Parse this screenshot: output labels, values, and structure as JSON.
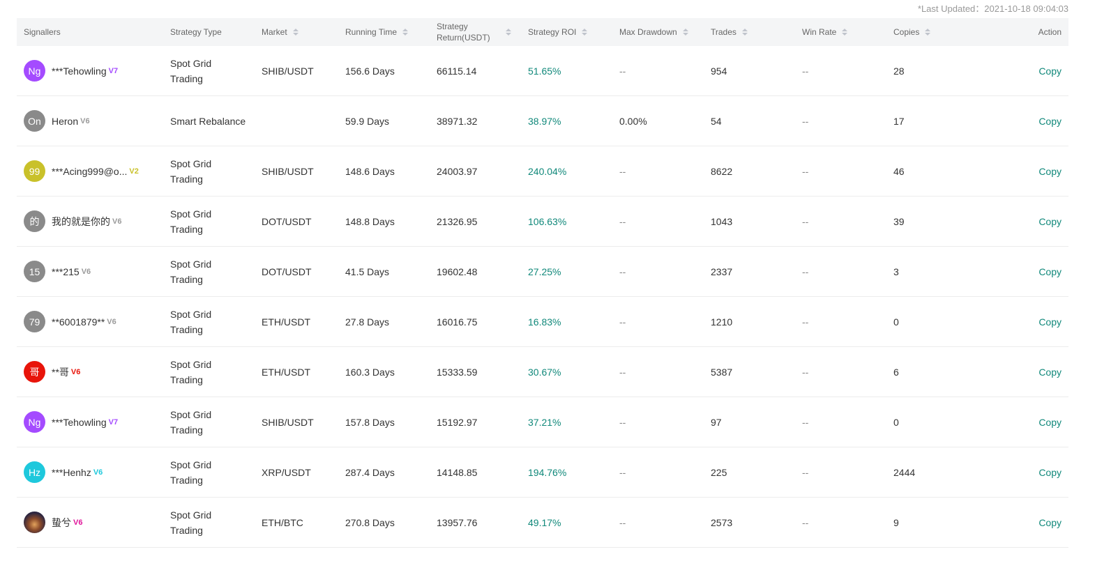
{
  "last_updated": "*Last Updated：2021-10-18 09:04:03",
  "headers": {
    "signallers": "Signallers",
    "strategy_type": "Strategy Type",
    "market": "Market",
    "running_time": "Running Time",
    "strategy_return_line1": "Strategy",
    "strategy_return_line2": "Return(USDT)",
    "strategy_roi": "Strategy ROI",
    "max_drawdown": "Max Drawdown",
    "trades": "Trades",
    "win_rate": "Win Rate",
    "copies": "Copies",
    "action": "Action"
  },
  "colors": {
    "accent": "#10887a",
    "header_bg": "#f4f5f6"
  },
  "rows": [
    {
      "avatar": "Ng",
      "avatar_color": "#a44bff",
      "name": "***Tehowling",
      "badge": "V7",
      "badge_color": "#a44bff",
      "type_line1": "Spot Grid",
      "type_line2": "Trading",
      "market": "SHIB/USDT",
      "running_time": "156.6 Days",
      "strategy_return": "66115.14",
      "roi": "51.65%",
      "max_drawdown": "--",
      "trades": "954",
      "win_rate": "--",
      "copies": "28",
      "action": "Copy"
    },
    {
      "avatar": "On",
      "avatar_color": "#8a8a8a",
      "name": "Heron",
      "badge": "V6",
      "badge_color": "#9a9a9a",
      "type_line1": "Smart Rebalance",
      "type_line2": "",
      "market": "",
      "running_time": "59.9 Days",
      "strategy_return": "38971.32",
      "roi": "38.97%",
      "max_drawdown": "0.00%",
      "trades": "54",
      "win_rate": "--",
      "copies": "17",
      "action": "Copy"
    },
    {
      "avatar": "99",
      "avatar_color": "#c9c12a",
      "name": "***Acing999@o...",
      "badge": "V2",
      "badge_color": "#c9c12a",
      "type_line1": "Spot Grid",
      "type_line2": "Trading",
      "market": "SHIB/USDT",
      "running_time": "148.6 Days",
      "strategy_return": "24003.97",
      "roi": "240.04%",
      "max_drawdown": "--",
      "trades": "8622",
      "win_rate": "--",
      "copies": "46",
      "action": "Copy"
    },
    {
      "avatar": "的",
      "avatar_color": "#8a8a8a",
      "name": "我的就是你的",
      "badge": "V6",
      "badge_color": "#9a9a9a",
      "type_line1": "Spot Grid",
      "type_line2": "Trading",
      "market": "DOT/USDT",
      "running_time": "148.8 Days",
      "strategy_return": "21326.95",
      "roi": "106.63%",
      "max_drawdown": "--",
      "trades": "1043",
      "win_rate": "--",
      "copies": "39",
      "action": "Copy"
    },
    {
      "avatar": "15",
      "avatar_color": "#8a8a8a",
      "name": "***215",
      "badge": "V6",
      "badge_color": "#9a9a9a",
      "type_line1": "Spot Grid",
      "type_line2": "Trading",
      "market": "DOT/USDT",
      "running_time": "41.5 Days",
      "strategy_return": "19602.48",
      "roi": "27.25%",
      "max_drawdown": "--",
      "trades": "2337",
      "win_rate": "--",
      "copies": "3",
      "action": "Copy"
    },
    {
      "avatar": "79",
      "avatar_color": "#8a8a8a",
      "name": "**6001879**",
      "badge": "V6",
      "badge_color": "#9a9a9a",
      "type_line1": "Spot Grid",
      "type_line2": "Trading",
      "market": "ETH/USDT",
      "running_time": "27.8 Days",
      "strategy_return": "16016.75",
      "roi": "16.83%",
      "max_drawdown": "--",
      "trades": "1210",
      "win_rate": "--",
      "copies": "0",
      "action": "Copy"
    },
    {
      "avatar": "哥",
      "avatar_color": "#e8140a",
      "name": "**哥",
      "badge": "V6",
      "badge_color": "#e8140a",
      "type_line1": "Spot Grid",
      "type_line2": "Trading",
      "market": "ETH/USDT",
      "running_time": "160.3 Days",
      "strategy_return": "15333.59",
      "roi": "30.67%",
      "max_drawdown": "--",
      "trades": "5387",
      "win_rate": "--",
      "copies": "6",
      "action": "Copy"
    },
    {
      "avatar": "Ng",
      "avatar_color": "#a44bff",
      "name": "***Tehowling",
      "badge": "V7",
      "badge_color": "#a44bff",
      "type_line1": "Spot Grid",
      "type_line2": "Trading",
      "market": "SHIB/USDT",
      "running_time": "157.8 Days",
      "strategy_return": "15192.97",
      "roi": "37.21%",
      "max_drawdown": "--",
      "trades": "97",
      "win_rate": "--",
      "copies": "0",
      "action": "Copy"
    },
    {
      "avatar": "Hz",
      "avatar_color": "#1ec8dc",
      "name": "***Henhz",
      "badge": "V6",
      "badge_color": "#1ec8dc",
      "type_line1": "Spot Grid",
      "type_line2": "Trading",
      "market": "XRP/USDT",
      "running_time": "287.4 Days",
      "strategy_return": "14148.85",
      "roi": "194.76%",
      "max_drawdown": "--",
      "trades": "225",
      "win_rate": "--",
      "copies": "2444",
      "action": "Copy"
    },
    {
      "avatar": "",
      "avatar_color": "#6a4b3a",
      "name": "蛰兮",
      "badge": "V6",
      "badge_color": "#e0149a",
      "type_line1": "Spot Grid",
      "type_line2": "Trading",
      "market": "ETH/BTC",
      "running_time": "270.8 Days",
      "strategy_return": "13957.76",
      "roi": "49.17%",
      "max_drawdown": "--",
      "trades": "2573",
      "win_rate": "--",
      "copies": "9",
      "action": "Copy"
    }
  ]
}
